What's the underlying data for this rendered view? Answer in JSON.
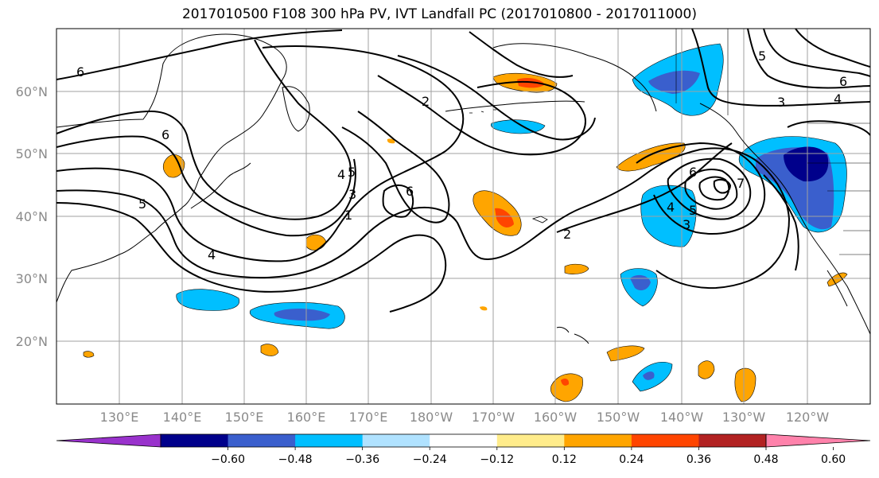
{
  "title": "2017010500 F108 300 hPa PV, IVT Landfall PC (2017010800 - 2017011000)",
  "lat_labels": [
    "60°N",
    "50°N",
    "40°N",
    "30°N",
    "20°N"
  ],
  "lon_labels": [
    "130°E",
    "140°E",
    "150°E",
    "160°E",
    "170°E",
    "180°W",
    "170°W",
    "160°W",
    "150°W",
    "140°W",
    "130°W",
    "120°W"
  ],
  "colorbar": {
    "ticks": [
      "−0.60",
      "−0.48",
      "−0.36",
      "−0.24",
      "−0.12",
      "0.12",
      "0.24",
      "0.36",
      "0.48",
      "0.60"
    ],
    "colors": [
      "#9932cc",
      "#00008b",
      "#3a5fcd",
      "#00bfff",
      "#b0e2ff",
      "#ffffff",
      "#ffec8b",
      "#ffa500",
      "#ff4500",
      "#b22222",
      "#ff82ab"
    ]
  },
  "contour_labels": [
    "6",
    "6",
    "5",
    "4",
    "4",
    "5",
    "3",
    "1",
    "2",
    "6",
    "2",
    "6",
    "4",
    "5",
    "3",
    "7",
    "5",
    "3",
    "4",
    "6"
  ]
}
